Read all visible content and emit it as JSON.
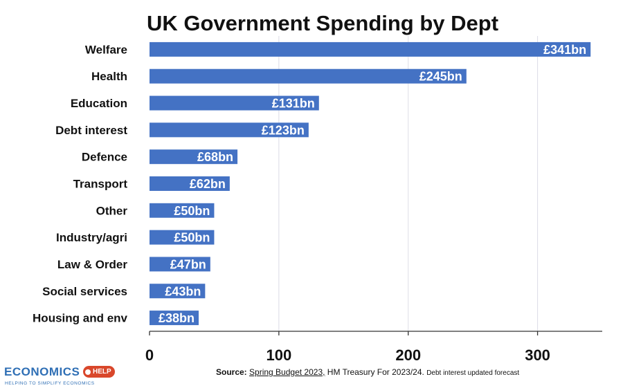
{
  "chart_data": {
    "type": "bar",
    "orientation": "horizontal",
    "title": "UK Government Spending by Dept",
    "categories": [
      "Welfare",
      "Health",
      "Education",
      "Debt interest",
      "Defence",
      "Transport",
      "Other",
      "Industry/agri",
      "Law & Order",
      "Social services",
      "Housing and env"
    ],
    "values": [
      341,
      245,
      131,
      123,
      68,
      62,
      50,
      50,
      47,
      43,
      38
    ],
    "data_labels": [
      "£341bn",
      "£245bn",
      "£131bn",
      "£123bn",
      "£68bn",
      "£62bn",
      "£50bn",
      "£50bn",
      "£47bn",
      "£43bn",
      "£38bn"
    ],
    "xticks": [
      0,
      100,
      200,
      300
    ],
    "xtick_labels": [
      "0",
      "100",
      "200",
      "300"
    ],
    "xlim": [
      0,
      350
    ],
    "grid": true,
    "bar_color": "#4472c4"
  },
  "source": {
    "lead": "Source:",
    "link": "Spring Budget 2023,",
    "text": " HM Treasury For 2023/24.",
    "note": "Debt interest updated forecast"
  },
  "logo": {
    "main": "ECONOMICS",
    "badge": "HELP",
    "tagline": "HELPING TO SIMPLIFY ECONOMICS",
    "icon": "economics-help-logo-icon"
  }
}
